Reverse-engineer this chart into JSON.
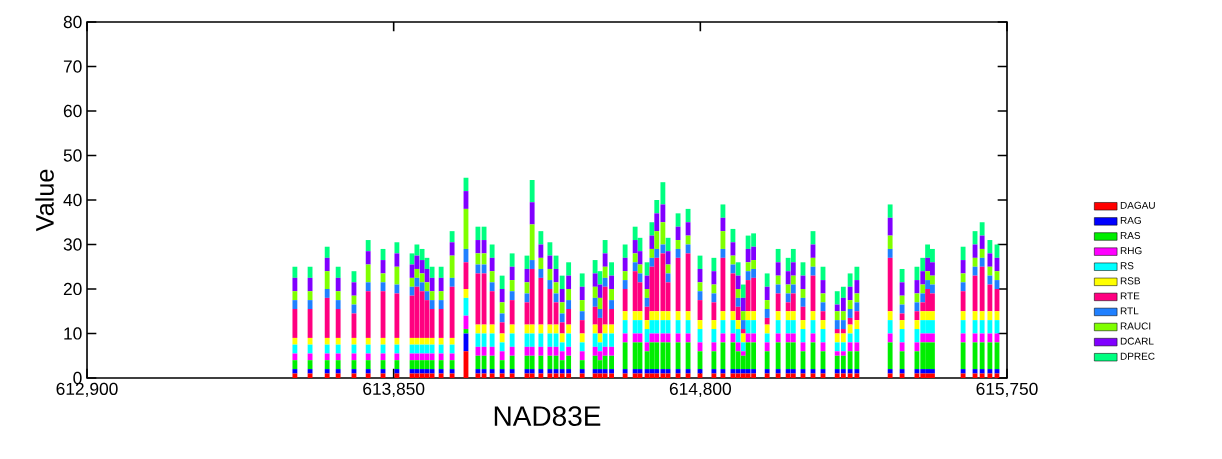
{
  "chart_data": {
    "type": "bar",
    "stacked": true,
    "xlabel": "NAD83E",
    "ylabel": "Value",
    "legend": "right",
    "xlim": [
      612900,
      615750
    ],
    "xticks": [
      {
        "value": 612900,
        "label": "612,900"
      },
      {
        "value": 613850,
        "label": "613,850"
      },
      {
        "value": 614800,
        "label": "614,800"
      },
      {
        "value": 615750,
        "label": "615,750"
      }
    ],
    "ylim": [
      0,
      80
    ],
    "yticks": [
      0,
      10,
      20,
      30,
      40,
      50,
      60,
      70,
      80
    ],
    "x": [
      613544,
      613591,
      613644,
      613678,
      613727,
      613771,
      613817,
      613860,
      613907,
      613922,
      613938,
      613953,
      613969,
      613997,
      614031,
      614074,
      614111,
      614130,
      614155,
      614186,
      614217,
      614263,
      614279,
      614306,
      614334,
      614353,
      614372,
      614392,
      614434,
      614474,
      614489,
      614505,
      614525,
      614567,
      614598,
      614613,
      614635,
      614650,
      614665,
      614684,
      614700,
      614731,
      614762,
      614799,
      614842,
      614870,
      614901,
      614917,
      614933,
      614948,
      614965,
      615007,
      615041,
      615072,
      615088,
      615118,
      615149,
      615180,
      615224,
      615243,
      615264,
      615285,
      615388,
      615425,
      615471,
      615489,
      615504,
      615519,
      615614,
      615651,
      615673,
      615697,
      615719
    ],
    "series": [
      {
        "name": "DAGAU",
        "color": "#ff0000",
        "values": [
          1,
          1,
          1,
          1,
          1,
          1,
          1,
          1,
          1,
          1,
          1,
          1,
          1,
          1,
          1,
          6,
          1,
          1,
          1,
          1,
          1,
          1,
          1,
          1,
          1,
          1,
          1,
          1,
          1,
          1,
          1,
          1,
          1,
          1,
          1,
          1,
          1,
          1,
          1,
          1,
          1,
          1,
          1,
          1,
          1,
          1,
          1,
          1,
          1,
          1,
          1,
          1,
          1,
          1,
          1,
          1,
          1,
          1,
          1,
          1,
          1,
          1,
          1,
          1,
          1,
          1,
          1,
          1,
          1,
          1,
          1,
          1,
          1
        ]
      },
      {
        "name": "RAG",
        "color": "#0000ff",
        "values": [
          1,
          1,
          1,
          1,
          1,
          1,
          1,
          1,
          1,
          1,
          1,
          1,
          1,
          1,
          1,
          4,
          1,
          1,
          1,
          1,
          1,
          1,
          1,
          1,
          1,
          1,
          1,
          1,
          1,
          1,
          1,
          1,
          1,
          1,
          1,
          1,
          1,
          1,
          1,
          1,
          1,
          1,
          1,
          1,
          1,
          1,
          1,
          1,
          1,
          1,
          1,
          1,
          1,
          1,
          1,
          1,
          1,
          1,
          1,
          1,
          1,
          1,
          1,
          1,
          1,
          1,
          1,
          1,
          1,
          1,
          1,
          1,
          1
        ]
      },
      {
        "name": "RAS",
        "color": "#00ee00",
        "values": [
          2,
          2,
          2,
          2,
          2,
          2,
          2,
          2,
          2,
          2,
          2,
          2,
          2,
          2,
          2,
          1,
          3,
          3,
          3,
          2,
          3,
          3,
          3,
          3,
          3,
          3,
          2,
          3,
          2,
          3,
          2,
          3,
          3,
          6,
          6,
          6,
          4,
          6,
          6,
          6,
          6,
          6,
          6,
          4,
          4,
          6,
          6,
          4,
          3,
          6,
          6,
          4,
          6,
          6,
          6,
          4,
          6,
          4,
          3,
          3,
          4,
          4,
          6,
          4,
          4,
          6,
          6,
          6,
          6,
          6,
          6,
          6,
          6
        ]
      },
      {
        "name": "RHG",
        "color": "#ff00ff",
        "values": [
          1.5,
          1.5,
          1.5,
          1.5,
          1.5,
          1.5,
          1.5,
          1.5,
          1.5,
          1.5,
          1.5,
          1.5,
          1.5,
          1.5,
          1.5,
          3,
          2,
          2,
          2,
          2,
          2,
          2,
          2,
          2,
          2,
          2,
          2,
          2,
          2,
          2,
          2,
          2,
          2,
          2,
          2,
          2,
          2,
          2,
          2,
          2,
          2,
          2,
          2,
          2,
          2,
          2,
          2,
          2,
          1,
          2,
          2,
          2,
          2,
          2,
          2,
          2,
          2,
          2,
          1,
          1,
          2,
          2,
          2,
          2,
          2,
          2,
          2,
          2,
          2,
          2,
          2,
          2,
          2
        ]
      },
      {
        "name": "RS",
        "color": "#00ffff",
        "values": [
          2,
          2,
          2,
          2,
          2,
          2,
          2,
          2,
          2,
          2,
          2,
          2,
          2,
          2,
          2,
          4,
          3,
          3,
          3,
          2,
          3,
          3,
          3,
          3,
          3,
          3,
          2,
          3,
          2,
          3,
          2,
          3,
          3,
          3,
          3,
          3,
          3,
          3,
          3,
          3,
          3,
          3,
          3,
          3,
          3,
          3,
          3,
          3,
          2,
          3,
          3,
          2,
          3,
          3,
          3,
          3,
          3,
          3,
          2,
          2,
          2,
          3,
          3,
          3,
          3,
          3,
          3,
          3,
          3,
          3,
          3,
          3,
          3
        ]
      },
      {
        "name": "RSB",
        "color": "#ffff00",
        "values": [
          1.5,
          1.5,
          1.5,
          1.5,
          1.5,
          1.5,
          1.5,
          1.5,
          1.5,
          1.5,
          1.5,
          1.5,
          1.5,
          1.5,
          1.5,
          2,
          2,
          2,
          2,
          2,
          2,
          2,
          2,
          2,
          2,
          2,
          2,
          2,
          2,
          2,
          2,
          2,
          2,
          2,
          2,
          2,
          2,
          2,
          2,
          2,
          2,
          2,
          2,
          2,
          2,
          2,
          2,
          2,
          2,
          2,
          2,
          2,
          2,
          2,
          2,
          2,
          2,
          2,
          2,
          2,
          2,
          2,
          2,
          2,
          2,
          2,
          2,
          2,
          2,
          2,
          2,
          2,
          2
        ]
      },
      {
        "name": "RTE",
        "color": "#ff0080",
        "values": [
          6.5,
          6.5,
          9,
          6.5,
          5.5,
          10.5,
          10.5,
          10,
          9.5,
          11.5,
          10.5,
          8.5,
          6.5,
          6.5,
          11.5,
          6,
          11.5,
          11.5,
          7.5,
          2.5,
          5.5,
          5,
          12.5,
          10.5,
          8,
          5,
          2.5,
          3.5,
          3,
          4,
          3.5,
          8.5,
          3.5,
          5,
          9,
          6.5,
          3,
          10,
          12,
          13,
          6.5,
          12,
          13,
          4.5,
          4,
          12,
          8.5,
          3,
          1,
          7,
          7.5,
          1.5,
          4,
          2,
          4,
          3,
          8,
          2,
          1,
          1,
          1.5,
          2,
          12,
          1.5,
          2,
          2,
          5,
          4,
          4.5,
          8,
          10,
          6,
          5
        ]
      },
      {
        "name": "RTL",
        "color": "#2080ff",
        "values": [
          2,
          2,
          2,
          2,
          2,
          2,
          2,
          2,
          2,
          2,
          2,
          2,
          2,
          2,
          2,
          3,
          2,
          2,
          2,
          2,
          2,
          2,
          2,
          2,
          2,
          2,
          2,
          2,
          2,
          2,
          2,
          2,
          2,
          2,
          2,
          2,
          2,
          2,
          2,
          2,
          2,
          2,
          2,
          2,
          2,
          2,
          2,
          2,
          2,
          2,
          2,
          2,
          2,
          2,
          2,
          2,
          2,
          2,
          2,
          2,
          2,
          2,
          2,
          2,
          2,
          2,
          2,
          2,
          2,
          2,
          2,
          2,
          2
        ]
      },
      {
        "name": "RAUCI",
        "color": "#80ff00",
        "values": [
          2,
          2,
          4,
          2,
          2,
          4,
          2,
          4,
          2,
          2,
          2,
          2,
          2,
          2,
          5,
          9,
          2.5,
          2.5,
          2.5,
          2.5,
          2.5,
          2.5,
          8,
          2.5,
          2.5,
          2.5,
          2.5,
          2.5,
          2.5,
          2.5,
          2.5,
          2.5,
          2.5,
          2,
          2,
          2,
          2,
          2,
          4,
          5,
          2,
          2,
          2,
          2,
          2,
          4,
          2,
          2,
          2,
          2,
          2,
          2,
          2,
          2,
          2,
          2,
          2,
          2,
          2,
          2,
          2,
          2,
          3,
          2,
          2,
          2,
          2,
          2,
          2,
          2,
          2,
          2,
          2
        ]
      },
      {
        "name": "DCARL",
        "color": "#8000ff",
        "values": [
          3,
          3,
          3,
          3,
          3,
          3,
          3,
          3,
          3,
          3,
          3,
          3,
          3,
          3,
          3,
          4,
          3,
          3,
          3,
          3,
          3,
          3,
          5,
          3,
          3,
          3,
          3,
          3,
          3,
          3,
          3,
          3,
          3,
          3,
          3,
          3,
          3,
          3,
          4,
          4,
          3,
          3,
          3,
          3,
          3,
          3,
          3,
          3,
          3,
          3,
          3,
          3,
          3,
          3,
          3,
          3,
          3,
          3,
          1.5,
          3,
          3,
          3,
          4,
          3,
          3,
          3,
          3,
          3,
          3,
          3,
          3,
          3,
          3
        ]
      },
      {
        "name": "DPREC",
        "color": "#00ff80",
        "values": [
          2.5,
          2.5,
          2.5,
          2.5,
          2.5,
          2.5,
          2.5,
          2.5,
          2.5,
          2.5,
          2.5,
          2.5,
          2.5,
          2.5,
          2.5,
          3,
          3,
          3,
          3,
          3,
          3,
          3,
          5,
          3,
          3,
          3,
          3,
          3,
          3,
          3,
          3,
          3,
          3,
          3,
          3,
          3,
          3,
          3,
          3,
          5,
          3,
          3,
          3,
          3,
          3,
          3,
          3,
          3,
          3,
          3,
          3,
          3,
          3,
          3,
          3,
          3,
          3,
          3,
          3,
          2.5,
          3,
          3,
          3,
          3,
          3,
          3,
          3,
          3,
          3,
          3,
          3,
          3,
          3
        ]
      }
    ]
  }
}
